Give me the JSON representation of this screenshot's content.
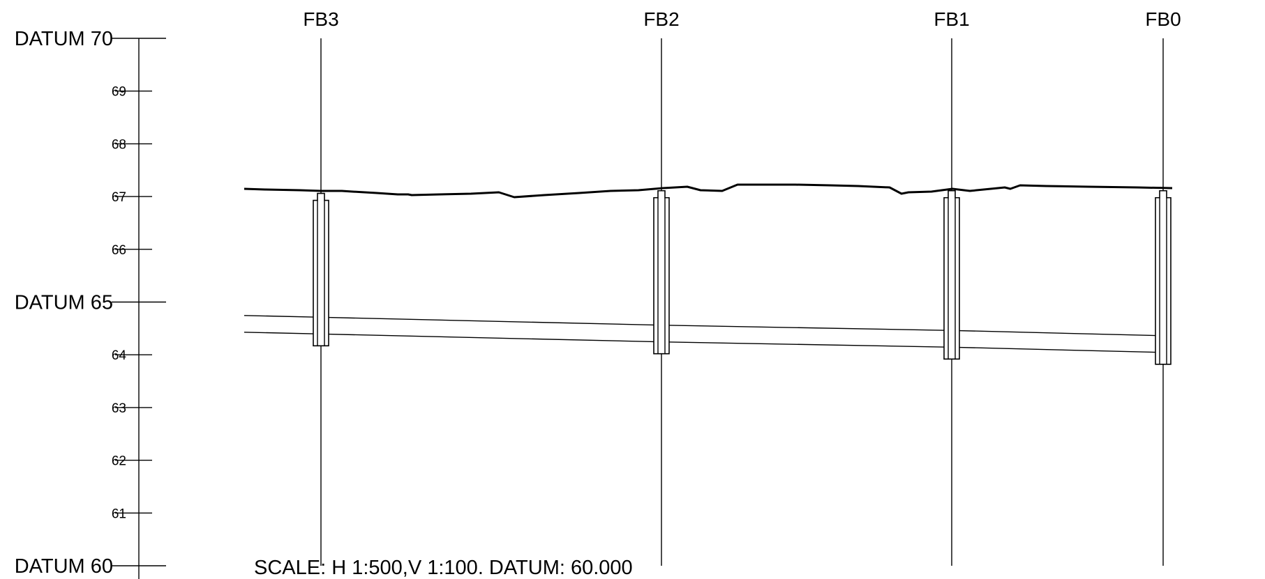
{
  "profile": {
    "datum_labels": [
      {
        "level": 70,
        "text": "DATUM 70"
      },
      {
        "level": 65,
        "text": "DATUM 65"
      },
      {
        "level": 60,
        "text": "DATUM 60"
      }
    ],
    "level_ticks": [
      {
        "level": 69,
        "text": "69"
      },
      {
        "level": 68,
        "text": "68"
      },
      {
        "level": 67,
        "text": "67"
      },
      {
        "level": 66,
        "text": "66"
      },
      {
        "level": 64,
        "text": "64"
      },
      {
        "level": 63,
        "text": "63"
      },
      {
        "level": 62,
        "text": "62"
      },
      {
        "level": 61,
        "text": "61"
      }
    ],
    "manholes": [
      {
        "name": "FB3",
        "ground_level": 67.1,
        "invert_level": 64.5
      },
      {
        "name": "FB2",
        "ground_level": 67.15,
        "invert_level": 64.35
      },
      {
        "name": "FB1",
        "ground_level": 67.15,
        "invert_level": 64.25
      },
      {
        "name": "FB0",
        "ground_level": 67.15,
        "invert_level": 64.15
      }
    ],
    "scale_note": "SCALE: H 1:500,V 1:100. DATUM: 60.000"
  }
}
